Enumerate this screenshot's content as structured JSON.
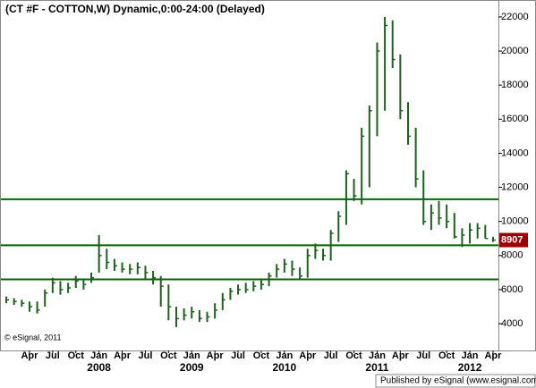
{
  "chart_data": {
    "type": "ohlc",
    "title": "(CT #F - COTTON,W) Dynamic,0:00-24:00 (Delayed)",
    "copyright": "© eSignal, 2011",
    "footer": "Published by eSignal (www.esignal.com)",
    "color": "#1f5f1f",
    "level_color": "#006400",
    "levels": [
      6600,
      8600,
      11300
    ],
    "xlim": [
      -0.7,
      63.7
    ],
    "ylim": [
      2430,
      22940
    ],
    "yticks": [
      4000,
      6000,
      8000,
      10000,
      12000,
      14000,
      16000,
      18000,
      20000,
      22000
    ],
    "xticks": [
      {
        "value": 3,
        "label": "Apr"
      },
      {
        "value": 6,
        "label": "Jul"
      },
      {
        "value": 9,
        "label": "Oct"
      },
      {
        "value": 12,
        "label": "Jan"
      },
      {
        "value": 15,
        "label": "Apr"
      },
      {
        "value": 18,
        "label": "Jul"
      },
      {
        "value": 21,
        "label": "Oct"
      },
      {
        "value": 24,
        "label": "Jan"
      },
      {
        "value": 27,
        "label": "Apr"
      },
      {
        "value": 30,
        "label": "Jul"
      },
      {
        "value": 33,
        "label": "Oct"
      },
      {
        "value": 36,
        "label": "Jan"
      },
      {
        "value": 39,
        "label": "Apr"
      },
      {
        "value": 42,
        "label": "Jul"
      },
      {
        "value": 45,
        "label": "Oct"
      },
      {
        "value": 48,
        "label": "Jan"
      },
      {
        "value": 51,
        "label": "Apr"
      },
      {
        "value": 54,
        "label": "Jul"
      },
      {
        "value": 57,
        "label": "Oct"
      },
      {
        "value": 60,
        "label": "Jan"
      },
      {
        "value": 63,
        "label": "Apr"
      }
    ],
    "year_ticks": [
      {
        "value": 12,
        "label": "2008"
      },
      {
        "value": 24,
        "label": "2009"
      },
      {
        "value": 36,
        "label": "2010"
      },
      {
        "value": 48,
        "label": "2011"
      },
      {
        "value": 60,
        "label": "2012"
      }
    ],
    "high": [
      5600,
      5500,
      5400,
      5300,
      5300,
      6000,
      6700,
      6500,
      6400,
      6800,
      6600,
      7000,
      9200,
      8400,
      7800,
      7600,
      7500,
      7600,
      7400,
      7100,
      6800,
      6300,
      5000,
      4900,
      5000,
      4800,
      4700,
      5200,
      5800,
      6100,
      6300,
      6400,
      6500,
      6600,
      7000,
      7500,
      7800,
      7700,
      7300,
      8400,
      8700,
      8400,
      9500,
      10600,
      13000,
      12500,
      15500,
      16800,
      20500,
      22000,
      21800,
      19800,
      17000,
      15500,
      13000,
      11000,
      11200,
      11000,
      10500,
      9600,
      9900,
      9900,
      9800,
      9100
    ],
    "low": [
      5200,
      5100,
      5000,
      4700,
      4600,
      5000,
      5800,
      5700,
      5800,
      6100,
      6000,
      6400,
      7000,
      7200,
      7100,
      7000,
      6900,
      6900,
      6600,
      6300,
      5000,
      4200,
      3800,
      4200,
      4300,
      4100,
      4100,
      4300,
      4800,
      5400,
      5700,
      5800,
      5900,
      6000,
      6200,
      6700,
      7000,
      6800,
      6600,
      6700,
      7800,
      7700,
      7700,
      8800,
      9800,
      11200,
      11000,
      12000,
      15000,
      16500,
      19000,
      16000,
      14500,
      12000,
      9800,
      9500,
      9800,
      9600,
      9000,
      8500,
      8700,
      9000,
      9000,
      8800
    ],
    "close": [
      5400,
      5300,
      5200,
      5000,
      4800,
      5800,
      6400,
      6000,
      6100,
      6500,
      6300,
      6700,
      8000,
      7600,
      7400,
      7200,
      7200,
      7300,
      7000,
      6700,
      6200,
      5000,
      4300,
      4500,
      4700,
      4300,
      4400,
      4800,
      5400,
      5900,
      6000,
      6000,
      6200,
      6300,
      6800,
      7200,
      7500,
      7200,
      6800,
      8000,
      8300,
      8000,
      9300,
      10300,
      12800,
      11500,
      15000,
      16500,
      20000,
      21500,
      19500,
      16500,
      15000,
      12500,
      10000,
      10500,
      10200,
      10000,
      9100,
      9200,
      9500,
      9600,
      9000,
      8907
    ]
  }
}
